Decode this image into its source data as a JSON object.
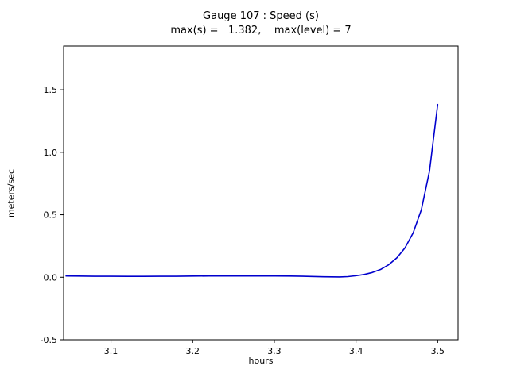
{
  "figure": {
    "background": "#ffffff",
    "axes_color": "#000000",
    "text_color": "#000000"
  },
  "chart_data": {
    "type": "line",
    "title": "Gauge 107 : Speed (s)",
    "subtitle": "max(s) =   1.382,    max(level) = 7",
    "xlabel": "hours",
    "ylabel": "meters/sec",
    "xlim": [
      3.042,
      3.525
    ],
    "ylim": [
      -0.5,
      1.85
    ],
    "xticks": [
      3.1,
      3.2,
      3.3,
      3.4,
      3.5
    ],
    "xtick_labels": [
      "3.1",
      "3.2",
      "3.3",
      "3.4",
      "3.5"
    ],
    "yticks": [
      -0.5,
      0.0,
      0.5,
      1.0,
      1.5
    ],
    "ytick_labels": [
      "-0.5",
      "0.0",
      "0.5",
      "1.0",
      "1.5"
    ],
    "grid": false,
    "legend": "none",
    "line_color": "#0000cd",
    "line_width": 1.6,
    "max_s": 1.382,
    "max_level": 7,
    "series": [
      {
        "name": "speed",
        "x": [
          3.045,
          3.06,
          3.08,
          3.1,
          3.12,
          3.14,
          3.16,
          3.18,
          3.2,
          3.22,
          3.24,
          3.26,
          3.28,
          3.3,
          3.32,
          3.34,
          3.36,
          3.38,
          3.39,
          3.4,
          3.41,
          3.42,
          3.43,
          3.44,
          3.45,
          3.46,
          3.47,
          3.48,
          3.49,
          3.5
        ],
        "y": [
          0.01,
          0.009,
          0.008,
          0.008,
          0.007,
          0.007,
          0.008,
          0.008,
          0.009,
          0.01,
          0.01,
          0.01,
          0.01,
          0.01,
          0.009,
          0.007,
          0.004,
          0.002,
          0.005,
          0.012,
          0.022,
          0.038,
          0.062,
          0.1,
          0.155,
          0.235,
          0.355,
          0.54,
          0.85,
          1.382
        ]
      }
    ]
  }
}
